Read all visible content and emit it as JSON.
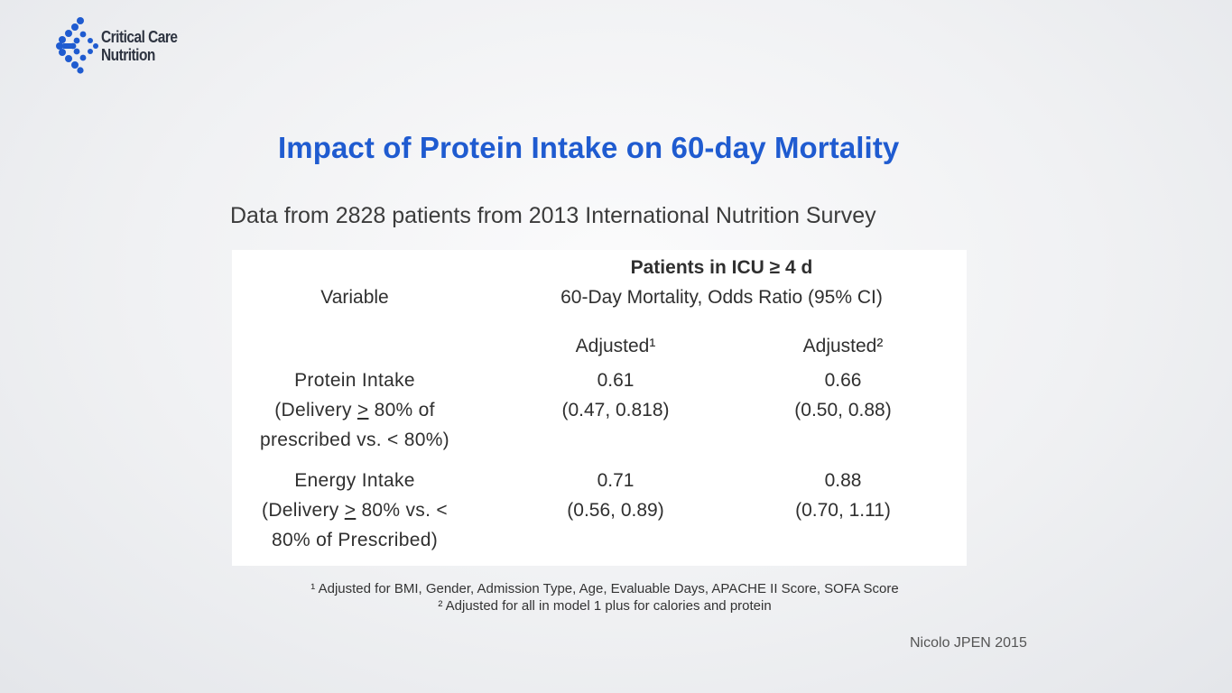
{
  "logo": {
    "line1": "Critical Care",
    "line2": "Nutrition",
    "color": "#1f5bd0"
  },
  "slide": {
    "title": "Impact of Protein Intake on 60-day Mortality",
    "subtitle": "Data from 2828 patients from 2013 International Nutrition Survey"
  },
  "table": {
    "variable_header": "Variable",
    "group_header": "Patients in ICU ≥ 4 d",
    "measure_header": "60-Day Mortality, Odds Ratio  (95% CI)",
    "col1_header": "Adjusted¹",
    "col2_header": "Adjusted²",
    "rows": [
      {
        "variable_line1": "Protein Intake",
        "variable_line2_pre": "(Delivery ",
        "variable_line2_sym": ">",
        "variable_line2_post": " 80%  of",
        "variable_line3": "prescribed vs. < 80%)",
        "adj1_value": "0.61",
        "adj1_ci": "(0.47, 0.818)",
        "adj2_value": "0.66",
        "adj2_ci": "(0.50, 0.88)"
      },
      {
        "variable_line1": "Energy Intake",
        "variable_line2_pre": "(Delivery ",
        "variable_line2_sym": ">",
        "variable_line2_post": " 80%  vs.  <",
        "variable_line3": "80%  of Prescribed)",
        "adj1_value": "0.71",
        "adj1_ci": "(0.56, 0.89)",
        "adj2_value": "0.88",
        "adj2_ci": "(0.70, 1.11)"
      }
    ]
  },
  "footnotes": {
    "note1": "¹ Adjusted for BMI, Gender, Admission Type, Age, Evaluable Days, APACHE II Score, SOFA Score",
    "note2": "² Adjusted for all in model 1 plus for calories and protein"
  },
  "citation": "Nicolo JPEN 2015"
}
